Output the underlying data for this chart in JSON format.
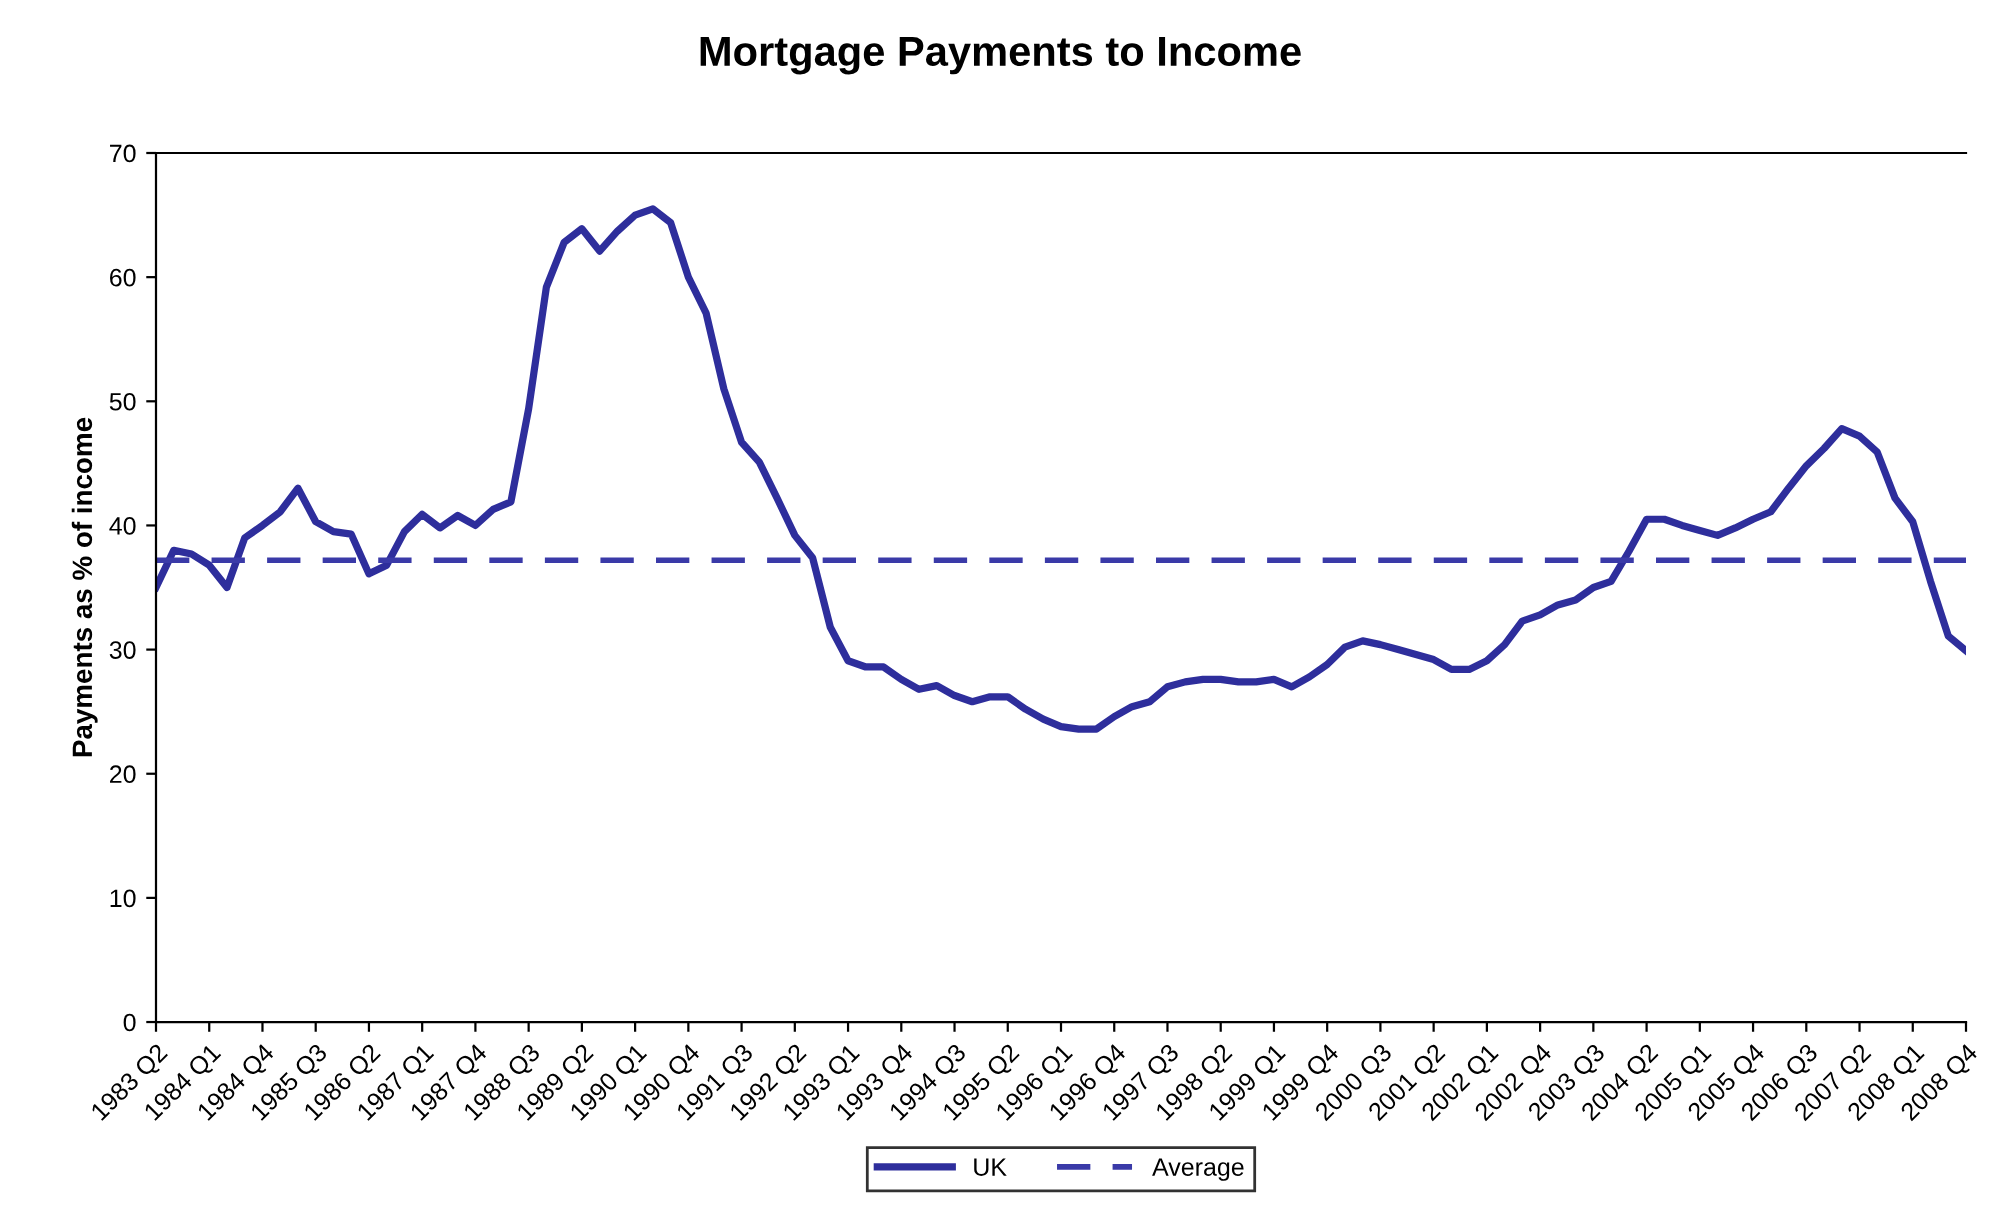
{
  "chart_data": {
    "type": "line",
    "title": "Mortgage Payments to Income",
    "ylabel": "Payments as % of income",
    "categories": [
      "1983 Q2",
      null,
      null,
      "1984 Q1",
      null,
      null,
      "1984 Q4",
      null,
      null,
      "1985 Q3",
      null,
      null,
      "1986 Q2",
      null,
      null,
      "1987 Q1",
      null,
      null,
      "1987 Q4",
      null,
      null,
      "1988 Q3",
      null,
      null,
      "1989 Q2",
      null,
      null,
      "1990 Q1",
      null,
      null,
      "1990 Q4",
      null,
      null,
      "1991 Q3",
      null,
      null,
      "1992 Q2",
      null,
      null,
      "1993 Q1",
      null,
      null,
      "1993 Q4",
      null,
      null,
      "1994 Q3",
      null,
      null,
      "1995 Q2",
      null,
      null,
      "1996 Q1",
      null,
      null,
      "1996 Q4",
      null,
      null,
      "1997 Q3",
      null,
      null,
      "1998 Q2",
      null,
      null,
      "1999 Q1",
      null,
      null,
      "1999 Q4",
      null,
      null,
      "2000 Q3",
      null,
      null,
      "2001 Q2",
      null,
      null,
      "2002 Q1",
      null,
      null,
      "2002 Q4",
      null,
      null,
      "2003 Q3",
      null,
      null,
      "2004 Q2",
      null,
      null,
      "2005 Q1",
      null,
      null,
      "2005 Q4",
      null,
      null,
      "2006 Q3",
      null,
      null,
      "2007 Q2",
      null,
      null,
      "2008 Q1",
      null,
      null,
      "2008 Q4"
    ],
    "series": [
      {
        "name": "UK",
        "color": "#2e2e9c",
        "values": [
          35.0,
          38.0,
          37.7,
          36.8,
          35.0,
          39.0,
          40.0,
          41.1,
          43.0,
          40.3,
          39.5,
          39.3,
          36.1,
          36.8,
          39.5,
          40.9,
          39.8,
          40.8,
          40.0,
          41.3,
          41.9,
          49.4,
          59.2,
          62.8,
          63.9,
          62.1,
          63.7,
          65.0,
          65.5,
          64.4,
          60.0,
          57.1,
          51.0,
          46.7,
          45.1,
          42.2,
          39.2,
          37.4,
          31.8,
          29.1,
          28.6,
          28.6,
          27.6,
          26.8,
          27.1,
          26.3,
          25.8,
          26.2,
          26.2,
          25.2,
          24.4,
          23.8,
          23.6,
          23.6,
          24.6,
          25.4,
          25.8,
          27.0,
          27.4,
          27.6,
          27.6,
          27.4,
          27.4,
          27.6,
          27.0,
          27.8,
          28.8,
          30.2,
          30.7,
          30.4,
          30.0,
          29.6,
          29.2,
          28.4,
          28.4,
          29.1,
          30.4,
          32.3,
          32.8,
          33.6,
          34.0,
          35.0,
          35.5,
          37.9,
          40.5,
          40.5,
          40.0,
          39.6,
          39.2,
          39.8,
          40.5,
          41.1,
          43.0,
          44.8,
          46.2,
          47.8,
          47.2,
          45.9,
          42.2,
          40.3,
          35.5,
          31.1,
          29.9
        ]
      }
    ],
    "ref_lines": [
      {
        "axis": "y",
        "value": 37.2,
        "label": "Average",
        "color": "#3a3aa8",
        "line_style": "dashed"
      }
    ],
    "ylim": [
      0,
      70
    ],
    "yticks": [
      0,
      10,
      20,
      30,
      40,
      50,
      60,
      70
    ],
    "grid": false,
    "legend": "bottom",
    "marker": "none",
    "line_style": "solid"
  }
}
